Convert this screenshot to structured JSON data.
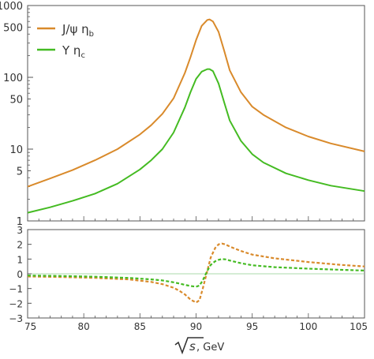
{
  "colors": {
    "jpsi_series": "#d98a2b",
    "upsilon_series": "#44bb22",
    "frame": "#555555",
    "zero_line": "#8fce8f"
  },
  "chart_data": [
    {
      "type": "line",
      "scale_y": "log",
      "ylim": [
        1,
        1000
      ],
      "xlim": [
        75,
        105
      ],
      "yticks_major": [
        1,
        10,
        100,
        1000
      ],
      "ytick_labels": [
        "1",
        "5",
        "10",
        "50",
        "100",
        "500",
        "1000"
      ],
      "ytick_values": [
        1,
        5,
        10,
        50,
        100,
        500,
        1000
      ],
      "legend_position": "top-left",
      "grid": false,
      "series": [
        {
          "name": "J/ψ η_b",
          "legend_label": "J/ψ η",
          "legend_sub": "b",
          "color_key": "jpsi_series",
          "x": [
            75,
            77,
            79,
            81,
            83,
            85,
            86,
            87,
            88,
            89,
            89.5,
            90,
            90.5,
            91,
            91.2,
            91.5,
            92,
            92.5,
            93,
            94,
            95,
            96,
            98,
            100,
            102,
            105
          ],
          "y": [
            3.0,
            3.9,
            5.1,
            7.0,
            10.0,
            16.0,
            21.5,
            31.0,
            51.0,
            115.0,
            190.0,
            330.0,
            520.0,
            630.0,
            640.0,
            600.0,
            430.0,
            235.0,
            125.0,
            62.0,
            39.0,
            30.0,
            20.0,
            15.0,
            12.0,
            9.3
          ]
        },
        {
          "name": "Υ η_c",
          "legend_label": "Υ η",
          "legend_sub": "c",
          "color_key": "upsilon_series",
          "x": [
            75,
            77,
            79,
            81,
            83,
            85,
            86,
            87,
            88,
            89,
            89.5,
            90,
            90.5,
            91,
            91.2,
            91.5,
            92,
            92.5,
            93,
            94,
            95,
            96,
            98,
            100,
            102,
            105
          ],
          "y": [
            1.3,
            1.55,
            1.9,
            2.4,
            3.3,
            5.2,
            7.0,
            10.0,
            17.0,
            38.0,
            62.0,
            95.0,
            120.0,
            130.0,
            130.0,
            122.0,
            82.0,
            45.0,
            25.0,
            13.0,
            8.5,
            6.5,
            4.6,
            3.7,
            3.1,
            2.6
          ]
        }
      ]
    },
    {
      "type": "line",
      "line_style": "dashed",
      "ylim": [
        -3,
        3
      ],
      "xlim": [
        75,
        105
      ],
      "ytick_labels": [
        "3",
        "2",
        "1",
        "0",
        "−1",
        "−2",
        "−3"
      ],
      "ytick_values": [
        3,
        2,
        1,
        0,
        -1,
        -2,
        -3
      ],
      "xtick_labels": [
        "75",
        "80",
        "85",
        "90",
        "95",
        "100",
        "105"
      ],
      "xtick_values": [
        75,
        80,
        85,
        90,
        95,
        100,
        105
      ],
      "xlabel_main": "s",
      "xlabel_unit": ", GeV",
      "reference_line_y": 0,
      "grid": false,
      "series": [
        {
          "color_key": "jpsi_series",
          "x": [
            75,
            78,
            81,
            84,
            86,
            87,
            88,
            88.5,
            89,
            89.5,
            90,
            90.3,
            90.6,
            91,
            91.3,
            91.7,
            92,
            92.3,
            92.6,
            93,
            94,
            95,
            97,
            100,
            103,
            105
          ],
          "y": [
            -0.18,
            -0.22,
            -0.28,
            -0.38,
            -0.55,
            -0.7,
            -0.95,
            -1.15,
            -1.4,
            -1.75,
            -1.95,
            -1.8,
            -1.0,
            0.2,
            1.1,
            1.75,
            2.0,
            2.05,
            2.0,
            1.85,
            1.55,
            1.3,
            1.05,
            0.8,
            0.6,
            0.5
          ]
        },
        {
          "color_key": "upsilon_series",
          "x": [
            75,
            78,
            81,
            84,
            86,
            87,
            88,
            88.5,
            89,
            89.5,
            90,
            90.3,
            90.6,
            91,
            91.3,
            91.7,
            92,
            92.3,
            92.6,
            93,
            94,
            95,
            97,
            100,
            103,
            105
          ],
          "y": [
            -0.12,
            -0.15,
            -0.2,
            -0.28,
            -0.38,
            -0.45,
            -0.58,
            -0.66,
            -0.75,
            -0.83,
            -0.88,
            -0.8,
            -0.45,
            0.2,
            0.6,
            0.85,
            0.95,
            1.0,
            0.98,
            0.9,
            0.72,
            0.58,
            0.45,
            0.35,
            0.27,
            0.22
          ]
        }
      ]
    }
  ]
}
